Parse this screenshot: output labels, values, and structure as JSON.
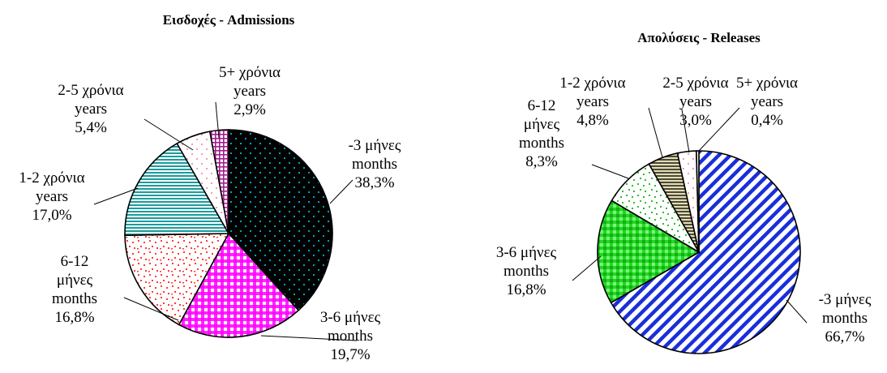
{
  "chart_data": [
    {
      "type": "pie",
      "title": "Εισδοχές - Admissions",
      "slices": [
        {
          "label": [
            "-3 μήνες",
            "months"
          ],
          "value": 38.3,
          "value_label": "38,3%",
          "pattern": "dots-black"
        },
        {
          "label": [
            "3-6 μήνες",
            "months"
          ],
          "value": 19.7,
          "value_label": "19,7%",
          "pattern": "check-magenta"
        },
        {
          "label": [
            "6-12",
            "μήνες",
            "months"
          ],
          "value": 16.8,
          "value_label": "16,8%",
          "pattern": "confetti-red"
        },
        {
          "label": [
            "1-2 χρόνια",
            "years"
          ],
          "value": 17.0,
          "value_label": "17,0%",
          "pattern": "hlines-teal"
        },
        {
          "label": [
            "2-5 χρόνια",
            "years"
          ],
          "value": 5.4,
          "value_label": "5,4%",
          "pattern": "dots-pink"
        },
        {
          "label": [
            "5+ χρόνια",
            "years"
          ],
          "value": 2.9,
          "value_label": "2,9%",
          "pattern": "grid-purple"
        }
      ]
    },
    {
      "type": "pie",
      "title": "Απολύσεις - Releases",
      "slices": [
        {
          "label": [
            "-3 μήνες",
            "months"
          ],
          "value": 66.7,
          "value_label": "66,7%",
          "pattern": "diag-blue"
        },
        {
          "label": [
            "3-6 μήνες",
            "months"
          ],
          "value": 16.8,
          "value_label": "16,8%",
          "pattern": "check-green"
        },
        {
          "label": [
            "6-12",
            "μήνες",
            "months"
          ],
          "value": 8.3,
          "value_label": "8,3%",
          "pattern": "confetti-green"
        },
        {
          "label": [
            "1-2 χρόνια",
            "years"
          ],
          "value": 4.8,
          "value_label": "4,8%",
          "pattern": "hlines-olive"
        },
        {
          "label": [
            "2-5 χρόνια",
            "years"
          ],
          "value": 3.0,
          "value_label": "3,0%",
          "pattern": "dots-pink"
        },
        {
          "label": [
            "5+ χρόνια",
            "years"
          ],
          "value": 0.4,
          "value_label": "0,4%",
          "pattern": "white"
        }
      ]
    }
  ]
}
